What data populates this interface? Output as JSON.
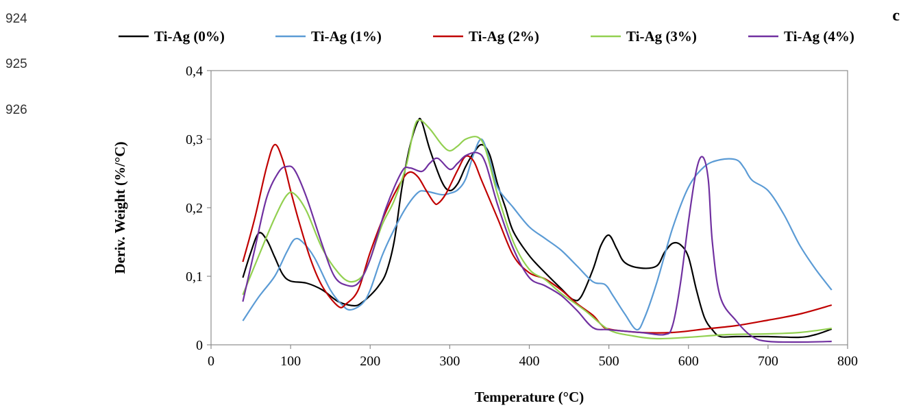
{
  "line_numbers": [
    "924",
    "925",
    "926"
  ],
  "panel_letter": "c",
  "chart_data": {
    "type": "line",
    "title": "",
    "xlabel": "Temperature (°C)",
    "ylabel": "Deriv. Weight (%/°C)",
    "xlim": [
      0,
      800
    ],
    "ylim": [
      0,
      0.4
    ],
    "x_ticks": [
      0,
      100,
      200,
      300,
      400,
      500,
      600,
      700,
      800
    ],
    "x_tick_labels": [
      "0",
      "100",
      "200",
      "300",
      "400",
      "500",
      "600",
      "700",
      "800"
    ],
    "y_ticks": [
      0,
      0.1,
      0.2,
      0.3,
      0.4
    ],
    "y_tick_labels": [
      "0",
      "0,1",
      "0,2",
      "0,3",
      "0,4"
    ],
    "grid": false,
    "legend_position": "top",
    "series": [
      {
        "name": "Ti-Ag (0%)",
        "color": "#000000",
        "points": [
          [
            40,
            0.098
          ],
          [
            50,
            0.135
          ],
          [
            60,
            0.163
          ],
          [
            70,
            0.153
          ],
          [
            80,
            0.128
          ],
          [
            90,
            0.103
          ],
          [
            100,
            0.093
          ],
          [
            120,
            0.09
          ],
          [
            140,
            0.08
          ],
          [
            160,
            0.063
          ],
          [
            180,
            0.057
          ],
          [
            190,
            0.062
          ],
          [
            200,
            0.072
          ],
          [
            210,
            0.085
          ],
          [
            220,
            0.105
          ],
          [
            230,
            0.15
          ],
          [
            240,
            0.23
          ],
          [
            250,
            0.29
          ],
          [
            260,
            0.326
          ],
          [
            265,
            0.325
          ],
          [
            275,
            0.285
          ],
          [
            290,
            0.238
          ],
          [
            300,
            0.225
          ],
          [
            310,
            0.235
          ],
          [
            320,
            0.26
          ],
          [
            330,
            0.28
          ],
          [
            340,
            0.292
          ],
          [
            350,
            0.278
          ],
          [
            360,
            0.235
          ],
          [
            370,
            0.2
          ],
          [
            380,
            0.165
          ],
          [
            400,
            0.13
          ],
          [
            420,
            0.105
          ],
          [
            440,
            0.082
          ],
          [
            455,
            0.066
          ],
          [
            465,
            0.07
          ],
          [
            480,
            0.11
          ],
          [
            490,
            0.145
          ],
          [
            500,
            0.16
          ],
          [
            510,
            0.14
          ],
          [
            520,
            0.12
          ],
          [
            540,
            0.112
          ],
          [
            560,
            0.115
          ],
          [
            570,
            0.135
          ],
          [
            580,
            0.148
          ],
          [
            590,
            0.146
          ],
          [
            600,
            0.128
          ],
          [
            610,
            0.08
          ],
          [
            620,
            0.04
          ],
          [
            630,
            0.022
          ],
          [
            640,
            0.012
          ],
          [
            660,
            0.012
          ],
          [
            700,
            0.012
          ],
          [
            740,
            0.011
          ],
          [
            760,
            0.015
          ],
          [
            780,
            0.023
          ]
        ]
      },
      {
        "name": "Ti-Ag (1%)",
        "color": "#5b9bd5",
        "points": [
          [
            40,
            0.035
          ],
          [
            60,
            0.07
          ],
          [
            80,
            0.1
          ],
          [
            95,
            0.135
          ],
          [
            105,
            0.154
          ],
          [
            115,
            0.15
          ],
          [
            130,
            0.127
          ],
          [
            150,
            0.08
          ],
          [
            165,
            0.058
          ],
          [
            175,
            0.051
          ],
          [
            190,
            0.06
          ],
          [
            200,
            0.08
          ],
          [
            215,
            0.13
          ],
          [
            230,
            0.168
          ],
          [
            245,
            0.2
          ],
          [
            260,
            0.222
          ],
          [
            270,
            0.224
          ],
          [
            290,
            0.219
          ],
          [
            300,
            0.221
          ],
          [
            310,
            0.226
          ],
          [
            320,
            0.242
          ],
          [
            330,
            0.278
          ],
          [
            340,
            0.3
          ],
          [
            350,
            0.27
          ],
          [
            360,
            0.23
          ],
          [
            380,
            0.2
          ],
          [
            400,
            0.172
          ],
          [
            420,
            0.155
          ],
          [
            440,
            0.138
          ],
          [
            460,
            0.115
          ],
          [
            480,
            0.092
          ],
          [
            495,
            0.088
          ],
          [
            505,
            0.072
          ],
          [
            520,
            0.045
          ],
          [
            535,
            0.022
          ],
          [
            545,
            0.04
          ],
          [
            560,
            0.09
          ],
          [
            580,
            0.17
          ],
          [
            600,
            0.23
          ],
          [
            620,
            0.26
          ],
          [
            640,
            0.27
          ],
          [
            660,
            0.27
          ],
          [
            670,
            0.258
          ],
          [
            680,
            0.24
          ],
          [
            700,
            0.225
          ],
          [
            720,
            0.19
          ],
          [
            740,
            0.145
          ],
          [
            760,
            0.11
          ],
          [
            780,
            0.08
          ]
        ]
      },
      {
        "name": "Ti-Ag (2%)",
        "color": "#c00000",
        "points": [
          [
            40,
            0.121
          ],
          [
            55,
            0.185
          ],
          [
            70,
            0.26
          ],
          [
            80,
            0.292
          ],
          [
            90,
            0.27
          ],
          [
            100,
            0.225
          ],
          [
            110,
            0.182
          ],
          [
            125,
            0.125
          ],
          [
            140,
            0.085
          ],
          [
            160,
            0.056
          ],
          [
            170,
            0.06
          ],
          [
            185,
            0.08
          ],
          [
            200,
            0.135
          ],
          [
            220,
            0.195
          ],
          [
            240,
            0.24
          ],
          [
            250,
            0.252
          ],
          [
            260,
            0.245
          ],
          [
            270,
            0.226
          ],
          [
            280,
            0.208
          ],
          [
            285,
            0.206
          ],
          [
            295,
            0.22
          ],
          [
            310,
            0.255
          ],
          [
            320,
            0.275
          ],
          [
            330,
            0.268
          ],
          [
            340,
            0.24
          ],
          [
            360,
            0.185
          ],
          [
            380,
            0.13
          ],
          [
            400,
            0.105
          ],
          [
            420,
            0.096
          ],
          [
            440,
            0.08
          ],
          [
            460,
            0.06
          ],
          [
            480,
            0.043
          ],
          [
            490,
            0.03
          ],
          [
            500,
            0.023
          ],
          [
            540,
            0.018
          ],
          [
            580,
            0.018
          ],
          [
            620,
            0.023
          ],
          [
            660,
            0.028
          ],
          [
            700,
            0.036
          ],
          [
            740,
            0.045
          ],
          [
            780,
            0.058
          ]
        ]
      },
      {
        "name": "Ti-Ag (3%)",
        "color": "#92d050",
        "points": [
          [
            40,
            0.073
          ],
          [
            60,
            0.13
          ],
          [
            80,
            0.185
          ],
          [
            95,
            0.218
          ],
          [
            105,
            0.22
          ],
          [
            120,
            0.195
          ],
          [
            140,
            0.14
          ],
          [
            160,
            0.105
          ],
          [
            175,
            0.092
          ],
          [
            190,
            0.1
          ],
          [
            200,
            0.125
          ],
          [
            215,
            0.175
          ],
          [
            230,
            0.21
          ],
          [
            245,
            0.26
          ],
          [
            255,
            0.315
          ],
          [
            262,
            0.328
          ],
          [
            275,
            0.315
          ],
          [
            290,
            0.292
          ],
          [
            300,
            0.283
          ],
          [
            310,
            0.29
          ],
          [
            320,
            0.3
          ],
          [
            335,
            0.303
          ],
          [
            345,
            0.285
          ],
          [
            360,
            0.22
          ],
          [
            380,
            0.15
          ],
          [
            400,
            0.11
          ],
          [
            420,
            0.095
          ],
          [
            440,
            0.075
          ],
          [
            470,
            0.05
          ],
          [
            500,
            0.022
          ],
          [
            530,
            0.013
          ],
          [
            560,
            0.009
          ],
          [
            600,
            0.011
          ],
          [
            650,
            0.015
          ],
          [
            700,
            0.016
          ],
          [
            740,
            0.018
          ],
          [
            780,
            0.024
          ]
        ]
      },
      {
        "name": "Ti-Ag (4%)",
        "color": "#7030a0",
        "points": [
          [
            40,
            0.063
          ],
          [
            55,
            0.14
          ],
          [
            70,
            0.215
          ],
          [
            85,
            0.252
          ],
          [
            95,
            0.26
          ],
          [
            105,
            0.255
          ],
          [
            120,
            0.215
          ],
          [
            140,
            0.145
          ],
          [
            155,
            0.1
          ],
          [
            170,
            0.087
          ],
          [
            185,
            0.09
          ],
          [
            200,
            0.125
          ],
          [
            220,
            0.2
          ],
          [
            240,
            0.253
          ],
          [
            250,
            0.258
          ],
          [
            265,
            0.253
          ],
          [
            275,
            0.265
          ],
          [
            285,
            0.272
          ],
          [
            300,
            0.256
          ],
          [
            310,
            0.265
          ],
          [
            320,
            0.276
          ],
          [
            335,
            0.28
          ],
          [
            345,
            0.265
          ],
          [
            360,
            0.205
          ],
          [
            380,
            0.14
          ],
          [
            400,
            0.098
          ],
          [
            420,
            0.086
          ],
          [
            440,
            0.072
          ],
          [
            460,
            0.05
          ],
          [
            480,
            0.025
          ],
          [
            500,
            0.022
          ],
          [
            540,
            0.018
          ],
          [
            570,
            0.015
          ],
          [
            580,
            0.028
          ],
          [
            590,
            0.09
          ],
          [
            600,
            0.18
          ],
          [
            610,
            0.255
          ],
          [
            618,
            0.274
          ],
          [
            625,
            0.24
          ],
          [
            630,
            0.15
          ],
          [
            640,
            0.07
          ],
          [
            660,
            0.035
          ],
          [
            680,
            0.012
          ],
          [
            700,
            0.005
          ],
          [
            740,
            0.004
          ],
          [
            780,
            0.005
          ]
        ]
      }
    ]
  }
}
